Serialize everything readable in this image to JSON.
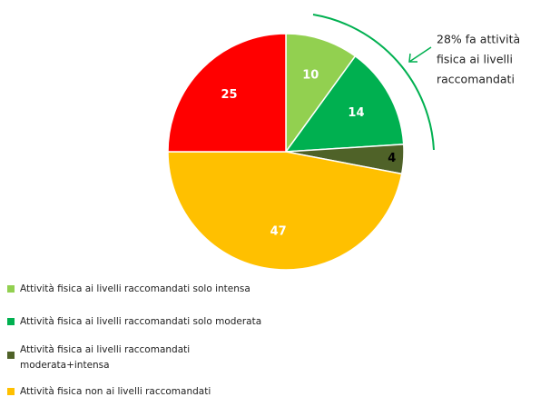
{
  "chart_data": {
    "type": "pie",
    "categories": [
      "Attività fisica ai livelli raccomandati solo intensa",
      "Attività fisica ai livelli raccomandati solo moderata",
      "Attività fisica ai livelli raccomandati\nmoderata+intensa",
      "Attività fisica non ai livelli raccomandati",
      null
    ],
    "values": [
      10,
      14,
      4,
      47,
      25
    ],
    "colors": [
      "#92d050",
      "#00b050",
      "#4f6228",
      "#ffc000",
      "#ff0000"
    ],
    "annotation": [
      "28% fa attività",
      "fisica ai livelli",
      "raccomandati"
    ]
  }
}
